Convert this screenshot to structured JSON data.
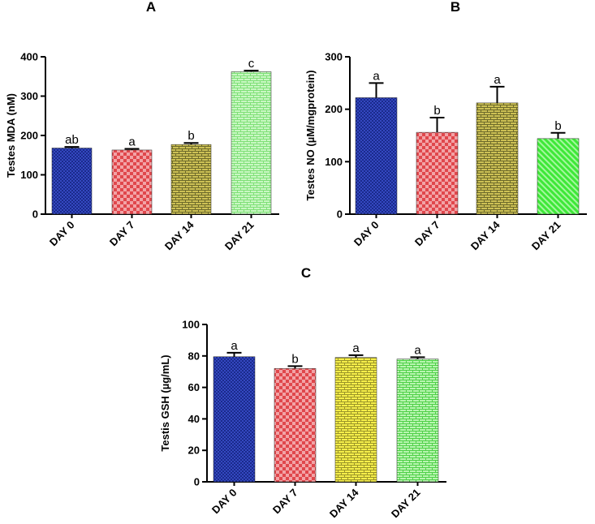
{
  "chart_data": [
    {
      "panel": "A",
      "type": "bar",
      "ylabel": "Testes MDA (nM)",
      "categories": [
        "DAY 0",
        "DAY 7",
        "DAY 14",
        "DAY 21"
      ],
      "values": [
        168,
        163,
        177,
        362
      ],
      "errors": [
        3,
        3,
        4,
        3
      ],
      "sig_labels": [
        "ab",
        "a",
        "b",
        "c"
      ],
      "ylim": [
        0,
        400
      ],
      "yticks": [
        "0",
        "100",
        "200",
        "300",
        "400"
      ],
      "legend": "none",
      "grid": false
    },
    {
      "panel": "B",
      "type": "bar",
      "ylabel": "Testes NO (µM/mgprotein)",
      "categories": [
        "DAY 0",
        "DAY 7",
        "DAY 14",
        "DAY 21"
      ],
      "values": [
        222,
        156,
        212,
        144
      ],
      "errors": [
        28,
        28,
        31,
        11
      ],
      "sig_labels": [
        "a",
        "b",
        "a",
        "b"
      ],
      "ylim": [
        0,
        300
      ],
      "yticks": [
        "0",
        "100",
        "200",
        "300"
      ],
      "legend": "none",
      "grid": false
    },
    {
      "panel": "C",
      "type": "bar",
      "ylabel": "Testis GSH (µg/mL)",
      "categories": [
        "DAY 0",
        "DAY 7",
        "DAY 14",
        "DAY 21"
      ],
      "values": [
        79.5,
        72,
        79,
        78
      ],
      "errors": [
        2.5,
        1.5,
        1.5,
        1.2
      ],
      "sig_labels": [
        "a",
        "b",
        "a",
        "a"
      ],
      "ylim": [
        0,
        100
      ],
      "yticks": [
        "0",
        "20",
        "40",
        "60",
        "80",
        "100"
      ],
      "legend": "none",
      "grid": false
    }
  ],
  "colors": {
    "day0": "#1a2a8c",
    "day7": "#e0474c",
    "day14_ab": "#b7a63a",
    "day21_a": "#a8f0a0",
    "day14_c": "#ece23a",
    "day21_bc": "#5fe85a"
  }
}
